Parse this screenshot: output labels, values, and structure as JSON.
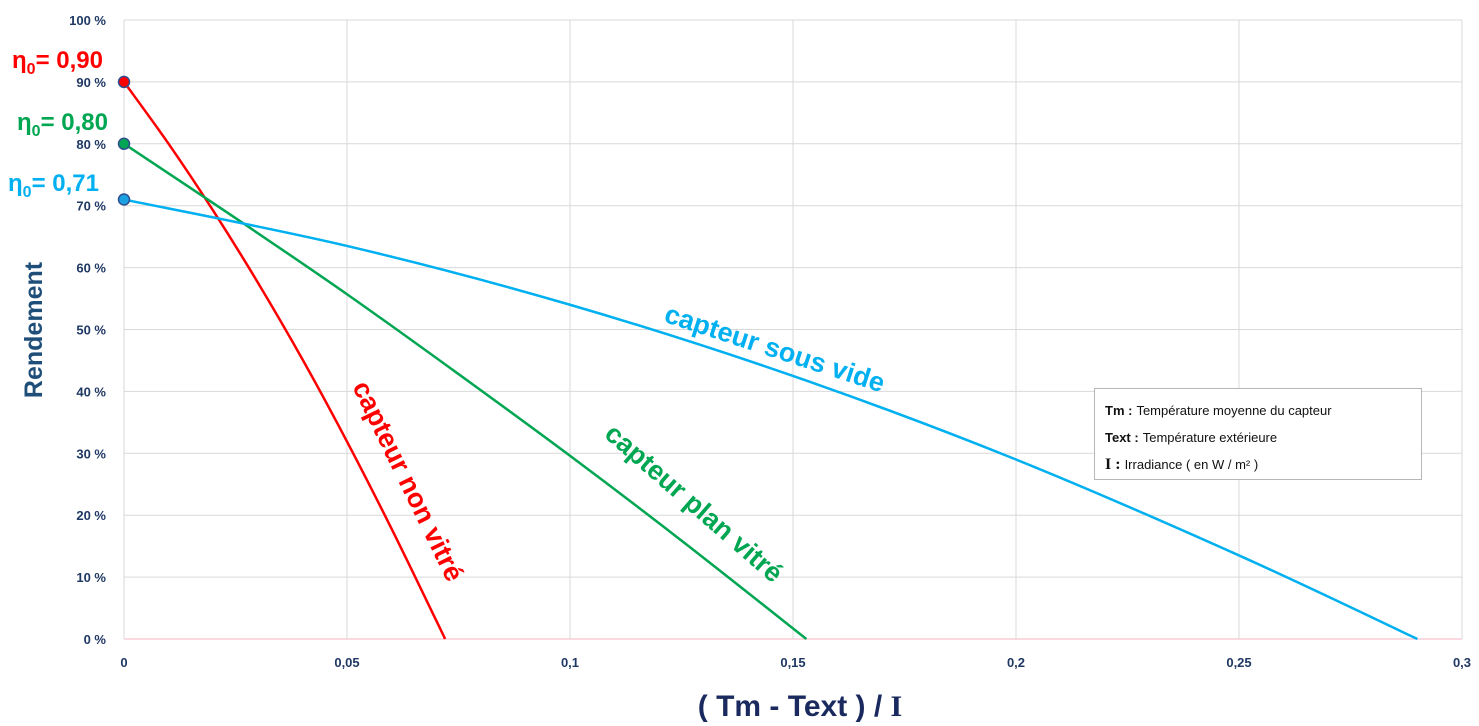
{
  "chart_data": {
    "type": "line",
    "title": "",
    "xlabel": "( Tm  -  Text )  /  I",
    "xlabel_parts": {
      "a": "( Tm  -  Text )  / ",
      "b": "I"
    },
    "ylabel": "Rendement",
    "xlim": [
      0,
      0.3
    ],
    "ylim": [
      0,
      100
    ],
    "grid": true,
    "x_ticks": [
      "0",
      "0,05",
      "0,1",
      "0,15",
      "0,2",
      "0,25",
      "0,3"
    ],
    "x_tick_values": [
      0,
      0.05,
      0.1,
      0.15,
      0.2,
      0.25,
      0.3
    ],
    "y_ticks": [
      "0 %",
      "10 %",
      "20 %",
      "30 %",
      "40 %",
      "50 %",
      "60 %",
      "70 %",
      "80 %",
      "90 %",
      "100 %"
    ],
    "y_tick_values": [
      0,
      10,
      20,
      30,
      40,
      50,
      60,
      70,
      80,
      90,
      100
    ],
    "series": [
      {
        "name": "capteur non vitré",
        "color": "#ff0000",
        "eta0_label": "= 0,90",
        "x": [
          0,
          0.01,
          0.02,
          0.03,
          0.04,
          0.05,
          0.06,
          0.07,
          0.072
        ],
        "y": [
          90,
          80,
          69.2,
          57.6,
          45.2,
          31.9,
          17.8,
          3.0,
          0
        ]
      },
      {
        "name": "capteur plan vitré",
        "color": "#00a651",
        "eta0_label": "= 0,80",
        "x": [
          0,
          0.025,
          0.05,
          0.075,
          0.1,
          0.125,
          0.153
        ],
        "y": [
          80,
          68,
          55.7,
          42.8,
          29.6,
          15.9,
          0
        ]
      },
      {
        "name": "capteur sous vide",
        "color": "#00b0f0",
        "eta0_label": "= 0,71",
        "x": [
          0,
          0.05,
          0.1,
          0.15,
          0.2,
          0.25,
          0.29
        ],
        "y": [
          71,
          63.5,
          54,
          42.5,
          29,
          13.5,
          0
        ]
      }
    ],
    "eta_symbol": "η",
    "eta_sub": "0"
  },
  "legend": [
    {
      "key": "Tm :",
      "text": "Température  moyenne  du  capteur"
    },
    {
      "key": "Text :",
      "text": "Température  extérieure"
    },
    {
      "key": "I :",
      "text": "Irradiance  ( en  W / m² )"
    }
  ]
}
